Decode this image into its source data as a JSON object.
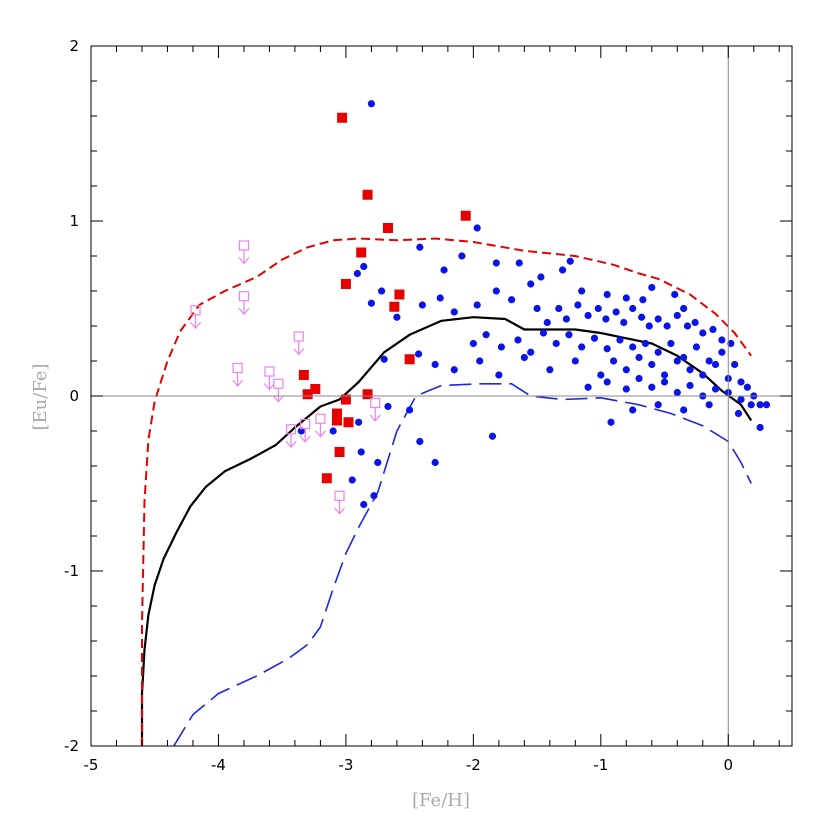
{
  "chart_data": {
    "type": "scatter",
    "title": "",
    "xlabel": "[Fe/H]",
    "ylabel": "[Eu/Fe]",
    "xlim": [
      -5,
      0.5
    ],
    "ylim": [
      -2,
      2
    ],
    "x_ticks": [
      -5,
      -4,
      -3,
      -2,
      -1,
      0
    ],
    "y_ticks": [
      -2,
      -1,
      0,
      1,
      2
    ],
    "reference_lines": {
      "horizontal_y": 0,
      "vertical_x": 0
    },
    "colors": {
      "blue_points": "#0a14e6",
      "red_squares": "#e60000",
      "upper_limits": "#ee82ee",
      "model_mean": "#000000",
      "model_upper": "#e60000",
      "model_lower": "#1e28dc",
      "reference": "#888888"
    },
    "series": [
      {
        "style": "blue-circles",
        "points": [
          [
            -2.8,
            1.67
          ],
          [
            -1.97,
            0.96
          ],
          [
            -2.42,
            0.85
          ],
          [
            -2.09,
            0.8
          ],
          [
            -2.23,
            0.72
          ],
          [
            -1.82,
            0.76
          ],
          [
            -1.64,
            0.76
          ],
          [
            -1.47,
            0.68
          ],
          [
            -1.3,
            0.72
          ],
          [
            -1.24,
            0.77
          ],
          [
            -1.55,
            0.64
          ],
          [
            -1.15,
            0.6
          ],
          [
            -0.95,
            0.58
          ],
          [
            -0.8,
            0.56
          ],
          [
            -0.67,
            0.55
          ],
          [
            -0.6,
            0.62
          ],
          [
            -0.42,
            0.58
          ],
          [
            -0.35,
            0.5
          ],
          [
            -2.86,
            0.74
          ],
          [
            -2.72,
            0.6
          ],
          [
            -2.6,
            0.45
          ],
          [
            -2.4,
            0.52
          ],
          [
            -2.26,
            0.56
          ],
          [
            -2.15,
            0.48
          ],
          [
            -1.97,
            0.52
          ],
          [
            -1.82,
            0.6
          ],
          [
            -1.7,
            0.55
          ],
          [
            -1.5,
            0.5
          ],
          [
            -1.42,
            0.42
          ],
          [
            -1.33,
            0.5
          ],
          [
            -1.27,
            0.44
          ],
          [
            -1.18,
            0.52
          ],
          [
            -1.1,
            0.46
          ],
          [
            -1.02,
            0.5
          ],
          [
            -0.96,
            0.44
          ],
          [
            -0.88,
            0.48
          ],
          [
            -0.82,
            0.42
          ],
          [
            -0.75,
            0.5
          ],
          [
            -0.68,
            0.45
          ],
          [
            -0.62,
            0.4
          ],
          [
            -0.55,
            0.44
          ],
          [
            -0.48,
            0.4
          ],
          [
            -0.4,
            0.46
          ],
          [
            -0.32,
            0.4
          ],
          [
            -0.26,
            0.42
          ],
          [
            -0.2,
            0.36
          ],
          [
            -0.12,
            0.38
          ],
          [
            -0.05,
            0.32
          ],
          [
            0.02,
            0.3
          ],
          [
            -2.0,
            0.3
          ],
          [
            -1.9,
            0.35
          ],
          [
            -1.78,
            0.28
          ],
          [
            -1.65,
            0.32
          ],
          [
            -1.55,
            0.25
          ],
          [
            -1.45,
            0.36
          ],
          [
            -1.35,
            0.3
          ],
          [
            -1.25,
            0.35
          ],
          [
            -1.15,
            0.28
          ],
          [
            -1.05,
            0.33
          ],
          [
            -0.95,
            0.27
          ],
          [
            -0.85,
            0.32
          ],
          [
            -0.75,
            0.28
          ],
          [
            -0.65,
            0.3
          ],
          [
            -0.55,
            0.25
          ],
          [
            -0.45,
            0.3
          ],
          [
            -0.35,
            0.22
          ],
          [
            -0.25,
            0.28
          ],
          [
            -0.15,
            0.2
          ],
          [
            -0.05,
            0.25
          ],
          [
            0.05,
            0.18
          ],
          [
            -2.3,
            0.18
          ],
          [
            -2.15,
            0.15
          ],
          [
            -1.95,
            0.2
          ],
          [
            -1.8,
            0.12
          ],
          [
            -1.6,
            0.22
          ],
          [
            -1.4,
            0.15
          ],
          [
            -1.2,
            0.2
          ],
          [
            -1.0,
            0.12
          ],
          [
            -0.9,
            0.2
          ],
          [
            -0.8,
            0.15
          ],
          [
            -0.7,
            0.22
          ],
          [
            -0.6,
            0.18
          ],
          [
            -0.5,
            0.12
          ],
          [
            -0.4,
            0.2
          ],
          [
            -0.3,
            0.15
          ],
          [
            -0.2,
            0.12
          ],
          [
            -0.1,
            0.18
          ],
          [
            0.0,
            0.1
          ],
          [
            0.1,
            0.08
          ],
          [
            0.15,
            0.05
          ],
          [
            -1.1,
            0.05
          ],
          [
            -0.95,
            0.08
          ],
          [
            -0.8,
            0.04
          ],
          [
            -0.7,
            0.1
          ],
          [
            -0.6,
            0.05
          ],
          [
            -0.5,
            0.08
          ],
          [
            -0.4,
            0.02
          ],
          [
            -0.3,
            0.06
          ],
          [
            -0.2,
            0.0
          ],
          [
            -0.1,
            0.04
          ],
          [
            0.0,
            0.02
          ],
          [
            0.1,
            -0.02
          ],
          [
            0.2,
            0.0
          ],
          [
            0.25,
            -0.05
          ],
          [
            0.3,
            -0.05
          ],
          [
            0.08,
            -0.1
          ],
          [
            -0.15,
            -0.05
          ],
          [
            -0.35,
            -0.08
          ],
          [
            -0.55,
            -0.05
          ],
          [
            -0.75,
            -0.08
          ],
          [
            -0.92,
            -0.15
          ],
          [
            -2.8,
            0.53
          ],
          [
            -2.91,
            0.7
          ],
          [
            -2.7,
            0.21
          ],
          [
            -2.43,
            0.24
          ],
          [
            -2.67,
            -0.06
          ],
          [
            -2.5,
            -0.08
          ],
          [
            -2.9,
            -0.15
          ],
          [
            -3.1,
            -0.2
          ],
          [
            -2.88,
            -0.32
          ],
          [
            -2.75,
            -0.38
          ],
          [
            -2.95,
            -0.48
          ],
          [
            -2.78,
            -0.57
          ],
          [
            -2.86,
            -0.62
          ],
          [
            -2.3,
            -0.38
          ],
          [
            -2.42,
            -0.26
          ],
          [
            -1.85,
            -0.23
          ],
          [
            -3.35,
            -0.2
          ],
          [
            0.18,
            -0.05
          ],
          [
            0.25,
            -0.18
          ]
        ]
      },
      {
        "style": "red-squares",
        "points": [
          [
            -3.03,
            1.59
          ],
          [
            -2.83,
            1.15
          ],
          [
            -2.67,
            0.96
          ],
          [
            -2.06,
            1.03
          ],
          [
            -2.88,
            0.82
          ],
          [
            -3.0,
            0.64
          ],
          [
            -2.58,
            0.58
          ],
          [
            -2.62,
            0.51
          ],
          [
            -3.33,
            0.12
          ],
          [
            -3.24,
            0.04
          ],
          [
            -3.3,
            0.01
          ],
          [
            -2.5,
            0.21
          ],
          [
            -3.0,
            -0.02
          ],
          [
            -2.83,
            0.01
          ],
          [
            -3.07,
            -0.1
          ],
          [
            -3.07,
            -0.14
          ],
          [
            -2.98,
            -0.15
          ],
          [
            -3.05,
            -0.32
          ],
          [
            -3.15,
            -0.47
          ]
        ]
      },
      {
        "style": "violet-upper-limits",
        "points": [
          [
            -3.8,
            0.86
          ],
          [
            -3.8,
            0.57
          ],
          [
            -4.18,
            0.49
          ],
          [
            -3.85,
            0.16
          ],
          [
            -3.6,
            0.14
          ],
          [
            -3.53,
            0.07
          ],
          [
            -3.37,
            0.34
          ],
          [
            -3.43,
            -0.19
          ],
          [
            -3.32,
            -0.16
          ],
          [
            -3.2,
            -0.13
          ],
          [
            -2.77,
            -0.04
          ],
          [
            -3.05,
            -0.57
          ]
        ]
      },
      {
        "style": "model-mean",
        "points": [
          [
            -4.6,
            -2.0
          ],
          [
            -4.6,
            -1.7
          ],
          [
            -4.58,
            -1.45
          ],
          [
            -4.55,
            -1.25
          ],
          [
            -4.5,
            -1.08
          ],
          [
            -4.43,
            -0.93
          ],
          [
            -4.33,
            -0.78
          ],
          [
            -4.22,
            -0.63
          ],
          [
            -4.1,
            -0.52
          ],
          [
            -3.95,
            -0.43
          ],
          [
            -3.75,
            -0.36
          ],
          [
            -3.55,
            -0.28
          ],
          [
            -3.4,
            -0.18
          ],
          [
            -3.2,
            -0.06
          ],
          [
            -3.05,
            -0.02
          ],
          [
            -2.9,
            0.08
          ],
          [
            -2.7,
            0.25
          ],
          [
            -2.5,
            0.35
          ],
          [
            -2.25,
            0.43
          ],
          [
            -2.0,
            0.45
          ],
          [
            -1.75,
            0.44
          ],
          [
            -1.6,
            0.38
          ],
          [
            -1.4,
            0.38
          ],
          [
            -1.2,
            0.38
          ],
          [
            -1.0,
            0.36
          ],
          [
            -0.8,
            0.33
          ],
          [
            -0.6,
            0.3
          ],
          [
            -0.4,
            0.23
          ],
          [
            -0.2,
            0.13
          ],
          [
            -0.05,
            0.03
          ],
          [
            0.1,
            -0.05
          ],
          [
            0.18,
            -0.14
          ]
        ]
      },
      {
        "style": "model-upper-dashed",
        "points": [
          [
            -4.6,
            -2.0
          ],
          [
            -4.6,
            -1.3
          ],
          [
            -4.58,
            -0.6
          ],
          [
            -4.55,
            -0.25
          ],
          [
            -4.5,
            -0.03
          ],
          [
            -4.4,
            0.2
          ],
          [
            -4.3,
            0.37
          ],
          [
            -4.15,
            0.52
          ],
          [
            -3.95,
            0.6
          ],
          [
            -3.7,
            0.68
          ],
          [
            -3.5,
            0.78
          ],
          [
            -3.3,
            0.85
          ],
          [
            -3.1,
            0.89
          ],
          [
            -2.9,
            0.9
          ],
          [
            -2.6,
            0.89
          ],
          [
            -2.3,
            0.9
          ],
          [
            -2.0,
            0.88
          ],
          [
            -1.6,
            0.83
          ],
          [
            -1.2,
            0.8
          ],
          [
            -0.9,
            0.75
          ],
          [
            -0.7,
            0.7
          ],
          [
            -0.55,
            0.67
          ],
          [
            -0.3,
            0.58
          ],
          [
            -0.1,
            0.47
          ],
          [
            0.05,
            0.36
          ],
          [
            0.18,
            0.23
          ]
        ]
      },
      {
        "style": "model-lower-longdash",
        "points": [
          [
            -4.35,
            -2.0
          ],
          [
            -4.2,
            -1.82
          ],
          [
            -4.0,
            -1.7
          ],
          [
            -3.7,
            -1.6
          ],
          [
            -3.45,
            -1.5
          ],
          [
            -3.3,
            -1.42
          ],
          [
            -3.2,
            -1.32
          ],
          [
            -3.1,
            -1.1
          ],
          [
            -3.0,
            -0.9
          ],
          [
            -2.9,
            -0.75
          ],
          [
            -2.75,
            -0.55
          ],
          [
            -2.6,
            -0.2
          ],
          [
            -2.45,
            0.0
          ],
          [
            -2.25,
            0.06
          ],
          [
            -1.95,
            0.07
          ],
          [
            -1.7,
            0.07
          ],
          [
            -1.55,
            0.0
          ],
          [
            -1.3,
            -0.02
          ],
          [
            -1.0,
            -0.01
          ],
          [
            -0.7,
            -0.05
          ],
          [
            -0.45,
            -0.1
          ],
          [
            -0.2,
            -0.17
          ],
          [
            0.0,
            -0.26
          ],
          [
            0.1,
            -0.38
          ],
          [
            0.18,
            -0.5
          ]
        ]
      }
    ]
  }
}
